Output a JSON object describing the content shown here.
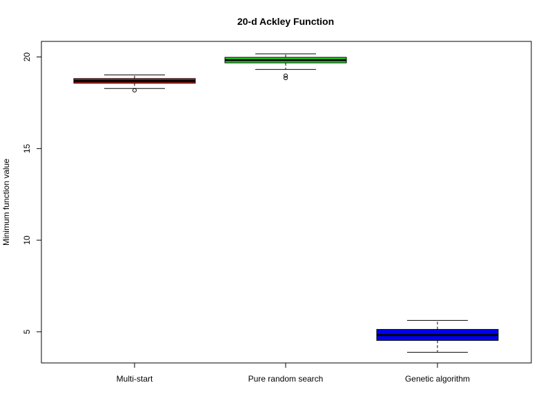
{
  "chart_data": {
    "type": "boxplot",
    "title": "20-d Ackley Function",
    "xlabel": "",
    "ylabel": "Minimum function value",
    "ylim": [
      3.3,
      20.85
    ],
    "yticks": [
      5,
      10,
      15,
      20
    ],
    "grid": false,
    "legend": "none",
    "categories": [
      "Multi-start",
      "Pure random search",
      "Genetic algorithm"
    ],
    "boxes": [
      {
        "category": "Multi-start",
        "whisker_low": 18.28,
        "q1": 18.57,
        "median": 18.69,
        "q3": 18.82,
        "whisker_high": 19.02,
        "outliers": [
          18.18
        ],
        "color": "#b22222"
      },
      {
        "category": "Pure random search",
        "whisker_low": 19.32,
        "q1": 19.68,
        "median": 19.83,
        "q3": 19.98,
        "whisker_high": 20.17,
        "outliers": [
          18.85,
          18.98
        ],
        "color": "#22dd22"
      },
      {
        "category": "Genetic algorithm",
        "whisker_low": 3.88,
        "q1": 4.53,
        "median": 4.82,
        "q3": 5.13,
        "whisker_high": 5.62,
        "outliers": [],
        "color": "#0000ee"
      }
    ]
  }
}
